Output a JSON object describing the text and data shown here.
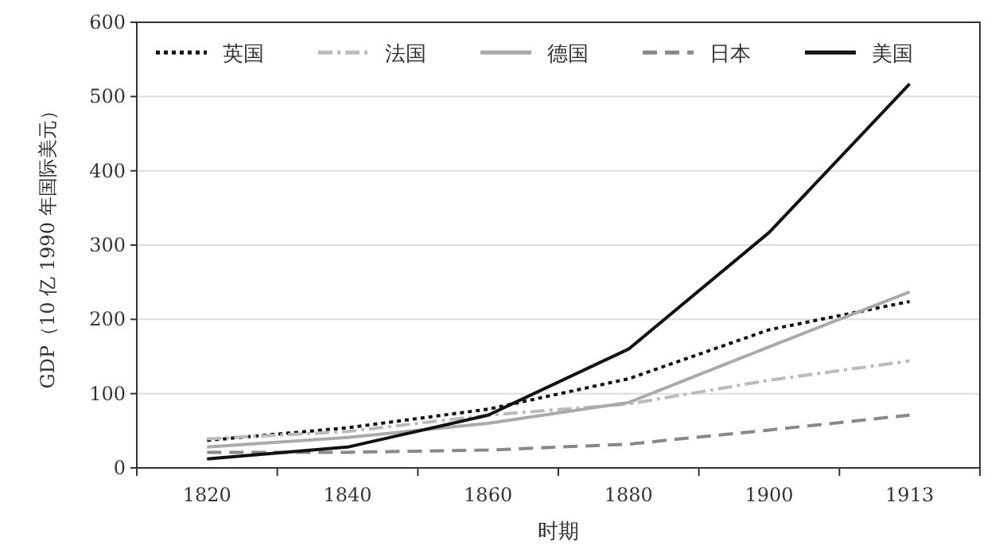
{
  "chart_data": {
    "type": "line",
    "xlabel": "时期",
    "ylabel": "GDP（10 亿 1990 年国际美元）",
    "categories": [
      "1820",
      "1840",
      "1860",
      "1880",
      "1900",
      "1913"
    ],
    "ylim": [
      0,
      600
    ],
    "yticks": [
      0,
      100,
      200,
      300,
      400,
      500,
      600
    ],
    "grid": "y",
    "legend": "top",
    "marker": "none",
    "series": [
      {
        "name": "英国",
        "color": "#111111",
        "line_style": "dotted",
        "values": [
          37,
          54,
          79,
          120,
          186,
          224
        ]
      },
      {
        "name": "法国",
        "color": "#bbbbbb",
        "line_style": "dashdot",
        "values": [
          39,
          49,
          71,
          86,
          118,
          144
        ]
      },
      {
        "name": "德国",
        "color": "#aaaaaa",
        "line_style": "solid",
        "values": [
          28,
          41,
          60,
          88,
          163,
          237
        ]
      },
      {
        "name": "日本",
        "color": "#888888",
        "line_style": "dashed",
        "values": [
          21,
          21,
          24,
          32,
          51,
          71
        ]
      },
      {
        "name": "美国",
        "color": "#111111",
        "line_style": "solid",
        "values": [
          12,
          28,
          71,
          160,
          317,
          517
        ]
      }
    ]
  }
}
